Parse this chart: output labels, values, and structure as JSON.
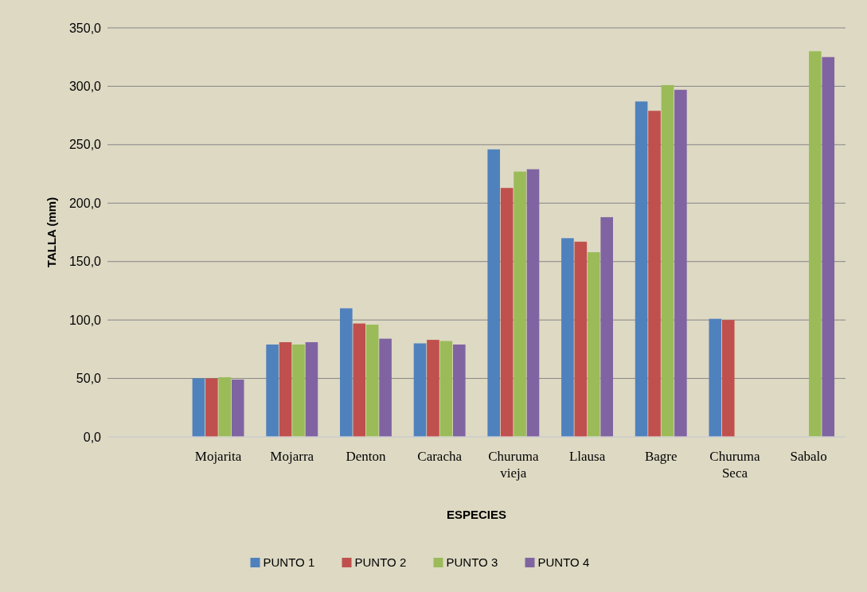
{
  "chart_data": {
    "type": "bar",
    "xlabel": "ESPECIES",
    "ylabel": "TALLA (mm)",
    "categories": [
      null,
      "Mojarita",
      "Mojarra",
      "Denton",
      "Caracha",
      "Churuma vieja",
      "Llausa",
      "Bagre",
      "Churuma Seca",
      "Sabalo"
    ],
    "series": [
      {
        "name": "PUNTO 1",
        "color": "#4f81bd",
        "values": [
          null,
          50,
          79,
          110,
          80,
          246,
          170,
          287,
          101,
          null
        ]
      },
      {
        "name": "PUNTO 2",
        "color": "#c0504d",
        "values": [
          null,
          50,
          81,
          97,
          83,
          213,
          167,
          279,
          100,
          null
        ]
      },
      {
        "name": "PUNTO 3",
        "color": "#9bbb59",
        "values": [
          null,
          51,
          79,
          96,
          82,
          227,
          158,
          301,
          null,
          330
        ]
      },
      {
        "name": "PUNTO 4",
        "color": "#8064a2",
        "values": [
          null,
          49,
          81,
          84,
          79,
          229,
          188,
          297,
          null,
          325
        ]
      }
    ],
    "ylim": [
      0,
      350
    ],
    "yticks": [
      {
        "value": 0,
        "label": "0,0"
      },
      {
        "value": 50,
        "label": "50,0"
      },
      {
        "value": 100,
        "label": "100,0"
      },
      {
        "value": 150,
        "label": "150,0"
      },
      {
        "value": 200,
        "label": "200,0"
      },
      {
        "value": 250,
        "label": "250,0"
      },
      {
        "value": 300,
        "label": "300,0"
      },
      {
        "value": 350,
        "label": "350,0"
      }
    ],
    "grid": "y",
    "legend": "bottom"
  }
}
